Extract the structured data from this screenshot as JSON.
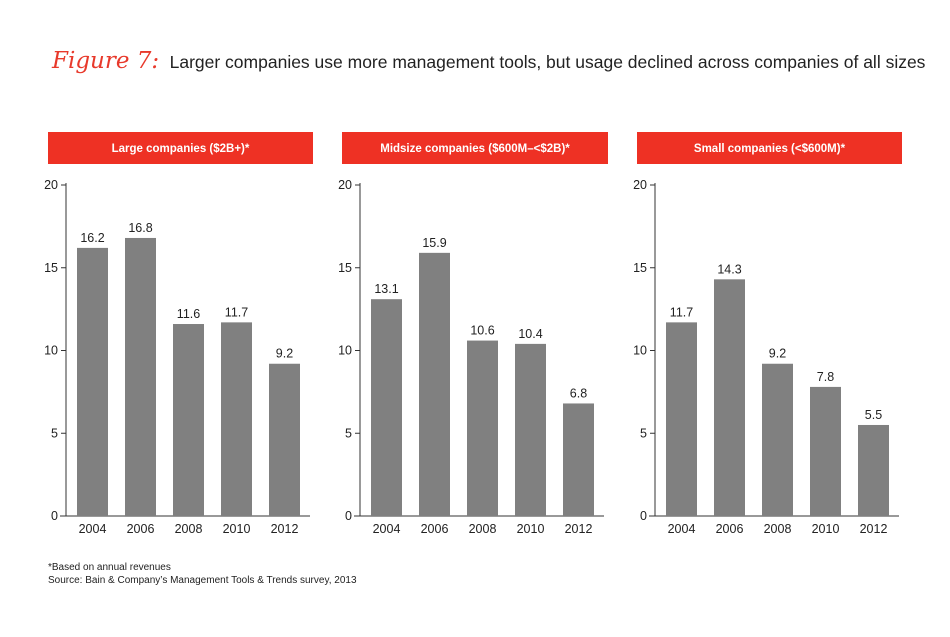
{
  "figure": {
    "label": "Figure 7:",
    "title": "Larger companies use more management tools, but usage declined across companies of all sizes"
  },
  "colors": {
    "header": "#ee3124",
    "bar": "#808080",
    "axis": "#333333"
  },
  "chart_data": [
    {
      "type": "bar",
      "title": "Large companies ($2B+)*",
      "categories": [
        "2004",
        "2006",
        "2008",
        "2010",
        "2012"
      ],
      "values": [
        16.2,
        16.8,
        11.6,
        11.7,
        9.2
      ],
      "value_labels": [
        "16.2",
        "16.8",
        "11.6",
        "11.7",
        "9.2"
      ],
      "yticks": [
        "0",
        "5",
        "10",
        "15",
        "20"
      ],
      "ylim": [
        0,
        20
      ],
      "xlabel": "",
      "ylabel": ""
    },
    {
      "type": "bar",
      "title": "Midsize companies ($600M–<$2B)*",
      "categories": [
        "2004",
        "2006",
        "2008",
        "2010",
        "2012"
      ],
      "values": [
        13.1,
        15.9,
        10.6,
        10.4,
        6.8
      ],
      "value_labels": [
        "13.1",
        "15.9",
        "10.6",
        "10.4",
        "6.8"
      ],
      "yticks": [
        "0",
        "5",
        "10",
        "15",
        "20"
      ],
      "ylim": [
        0,
        20
      ],
      "xlabel": "",
      "ylabel": ""
    },
    {
      "type": "bar",
      "title": "Small companies (<$600M)*",
      "categories": [
        "2004",
        "2006",
        "2008",
        "2010",
        "2012"
      ],
      "values": [
        11.7,
        14.3,
        9.2,
        7.8,
        5.5
      ],
      "value_labels": [
        "11.7",
        "14.3",
        "9.2",
        "7.8",
        "5.5"
      ],
      "yticks": [
        "0",
        "5",
        "10",
        "15",
        "20"
      ],
      "ylim": [
        0,
        20
      ],
      "xlabel": "",
      "ylabel": ""
    }
  ],
  "footnote": {
    "line1": "*Based on annual revenues",
    "line2": "Source: Bain & Company’s Management Tools & Trends survey, 2013"
  }
}
